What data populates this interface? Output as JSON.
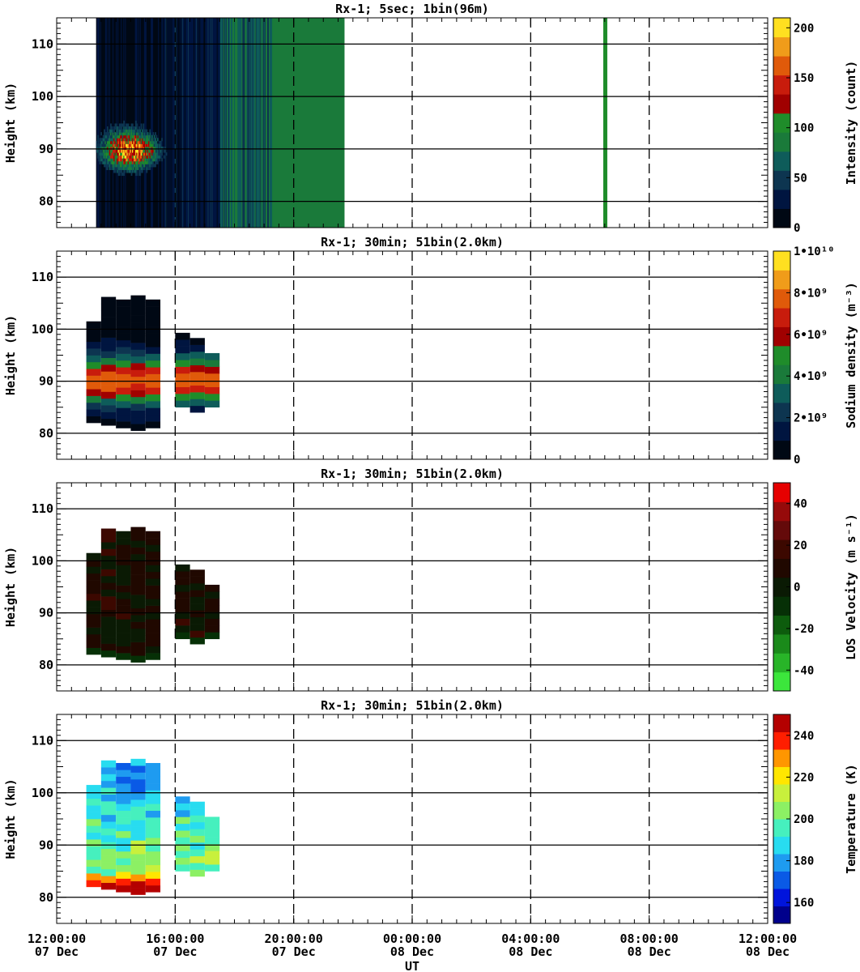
{
  "chart_data": [
    {
      "type": "heatmap",
      "title": "Rx-1;  5sec; 1bin(96m)",
      "ylabel": "Height (km)",
      "ylim": [
        75,
        115
      ],
      "yticks": [
        80,
        90,
        100,
        110
      ],
      "colorbar": {
        "label": "Intensity (count)",
        "range": [
          0,
          210
        ],
        "tick_values": [
          0,
          50,
          100,
          150,
          200
        ],
        "tick_labels": [
          "0",
          "50",
          "100",
          "150",
          "200"
        ],
        "colors": [
          "#000814",
          "#001540",
          "#0d3550",
          "#0e5c5a",
          "#1a7a3a",
          "#1f8c2a",
          "#a00000",
          "#c81c0c",
          "#e05a0a",
          "#f09c1a",
          "#ffe020"
        ]
      }
    },
    {
      "type": "heatmap",
      "title": "Rx-1; 30min; 51bin(2.0km)",
      "ylabel": "Height (km)",
      "ylim": [
        75,
        115
      ],
      "yticks": [
        80,
        90,
        100,
        110
      ],
      "colorbar": {
        "label": "Sodium density (m⁻³)",
        "range": [
          0,
          10000000000.0
        ],
        "tick_values": [
          0,
          2000000000.0,
          4000000000.0,
          6000000000.0,
          8000000000.0,
          10000000000.0
        ],
        "tick_labels": [
          "0",
          "2•10⁹",
          "4•10⁹",
          "6•10⁹",
          "8•10⁹",
          "1•10¹⁰"
        ],
        "colors": [
          "#000814",
          "#001540",
          "#0d3550",
          "#0e5c5a",
          "#1a7a3a",
          "#1f8c2a",
          "#a00000",
          "#c81c0c",
          "#e05a0a",
          "#f09c1a",
          "#ffe020"
        ]
      }
    },
    {
      "type": "heatmap",
      "title": "Rx-1; 30min; 51bin(2.0km)",
      "ylabel": "Height (km)",
      "ylim": [
        75,
        115
      ],
      "yticks": [
        80,
        90,
        100,
        110
      ],
      "colorbar": {
        "label": "LOS Velocity (m s⁻¹)",
        "range": [
          -50,
          50
        ],
        "tick_values": [
          -40,
          -20,
          0,
          20,
          40
        ],
        "tick_labels": [
          "-40",
          "-20",
          "0",
          "20",
          "40"
        ],
        "colors": [
          "#3ce63c",
          "#28b428",
          "#1a8a1a",
          "#0d5c0d",
          "#063006",
          "#0a1a04",
          "#200800",
          "#3c0800",
          "#640a0a",
          "#960a0a",
          "#e60000"
        ]
      }
    },
    {
      "type": "heatmap",
      "title": "Rx-1; 30min; 51bin(2.0km)",
      "xlabel": "UT",
      "ylabel": "Height (km)",
      "ylim": [
        75,
        115
      ],
      "yticks": [
        80,
        90,
        100,
        110
      ],
      "xticks": [
        {
          "time": "12:00:00",
          "date": "07 Dec"
        },
        {
          "time": "16:00:00",
          "date": "07 Dec"
        },
        {
          "time": "20:00:00",
          "date": "07 Dec"
        },
        {
          "time": "00:00:00",
          "date": "08 Dec"
        },
        {
          "time": "04:00:00",
          "date": "08 Dec"
        },
        {
          "time": "08:00:00",
          "date": "08 Dec"
        },
        {
          "time": "12:00:00",
          "date": "08 Dec"
        }
      ],
      "colorbar": {
        "label": "Temperature (K)",
        "range": [
          150,
          250
        ],
        "tick_values": [
          160,
          180,
          200,
          220,
          240
        ],
        "tick_labels": [
          "160",
          "180",
          "200",
          "220",
          "240"
        ],
        "colors": [
          "#00008c",
          "#0014dc",
          "#0a5ae6",
          "#1e9bf0",
          "#28dcf0",
          "#46f0be",
          "#8cf064",
          "#c8f03c",
          "#ffe600",
          "#ff9600",
          "#ff1e00",
          "#b40000"
        ]
      }
    }
  ]
}
